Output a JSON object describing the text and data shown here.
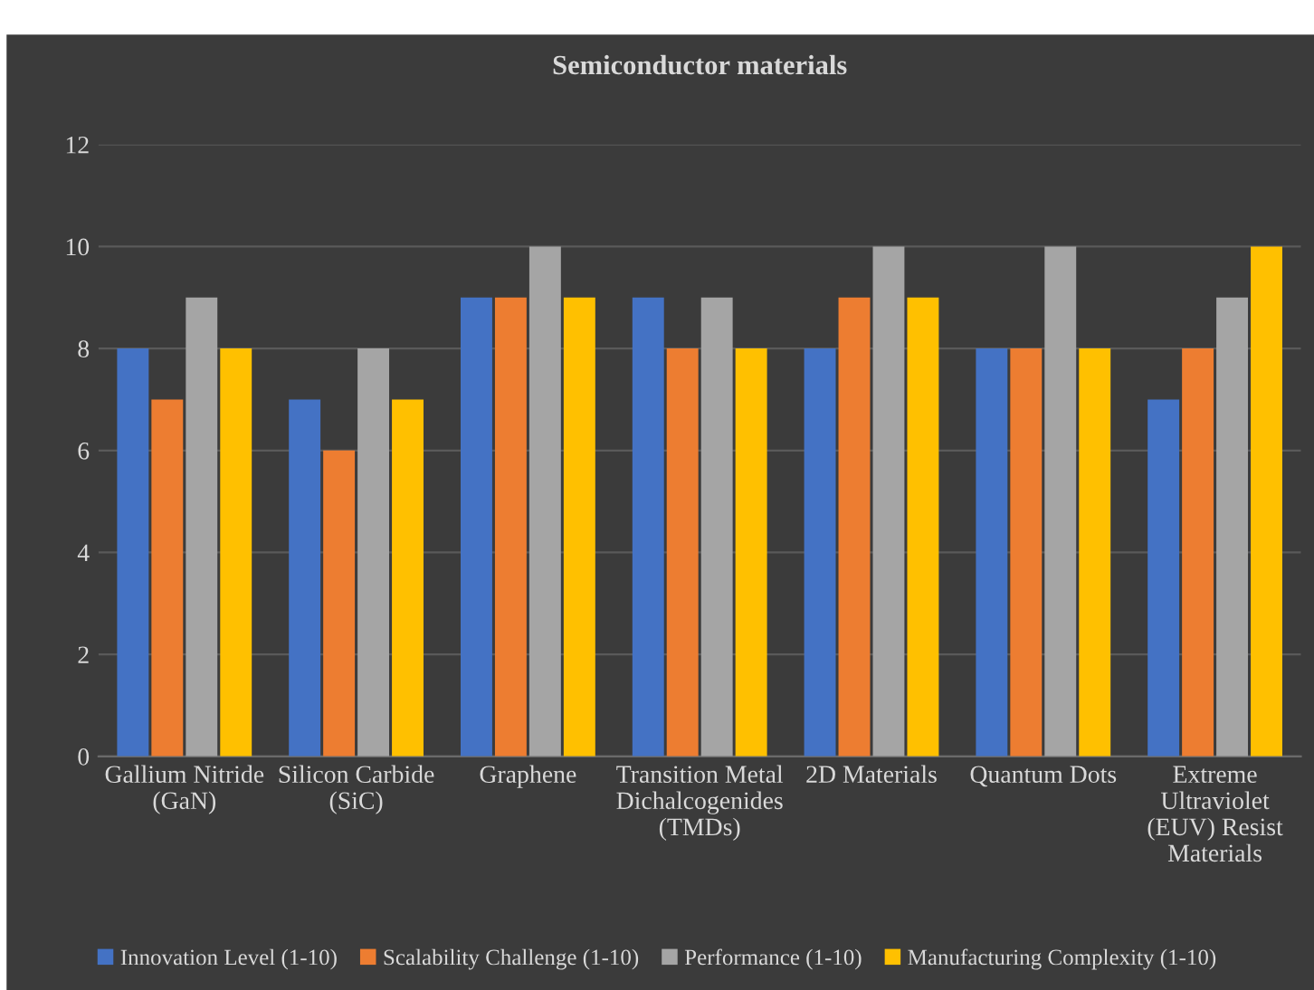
{
  "chart_data": {
    "type": "bar",
    "title": "Semiconductor materials",
    "categories": [
      "Gallium Nitride\n(GaN)",
      "Silicon Carbide\n(SiC)",
      "Graphene",
      "Transition Metal\nDichalcogenides\n(TMDs)",
      "2D Materials",
      "Quantum Dots",
      "Extreme\nUltraviolet\n(EUV) Resist\nMaterials"
    ],
    "series": [
      {
        "name": "Innovation Level (1-10)",
        "color": "#4472c4",
        "values": [
          8,
          7,
          9,
          9,
          8,
          8,
          7
        ]
      },
      {
        "name": "Scalability Challenge (1-10)",
        "color": "#ed7d31",
        "values": [
          7,
          6,
          9,
          8,
          9,
          8,
          8
        ]
      },
      {
        "name": "Performance (1-10)",
        "color": "#a5a5a5",
        "values": [
          9,
          8,
          10,
          9,
          10,
          10,
          9
        ]
      },
      {
        "name": "Manufacturing Complexity (1-10)",
        "color": "#ffc000",
        "values": [
          8,
          7,
          9,
          8,
          9,
          8,
          10
        ]
      }
    ],
    "ylim": [
      0,
      12
    ],
    "yticks": [
      0,
      2,
      4,
      6,
      8,
      10,
      12
    ],
    "grid": "y",
    "legend": "bottom"
  }
}
